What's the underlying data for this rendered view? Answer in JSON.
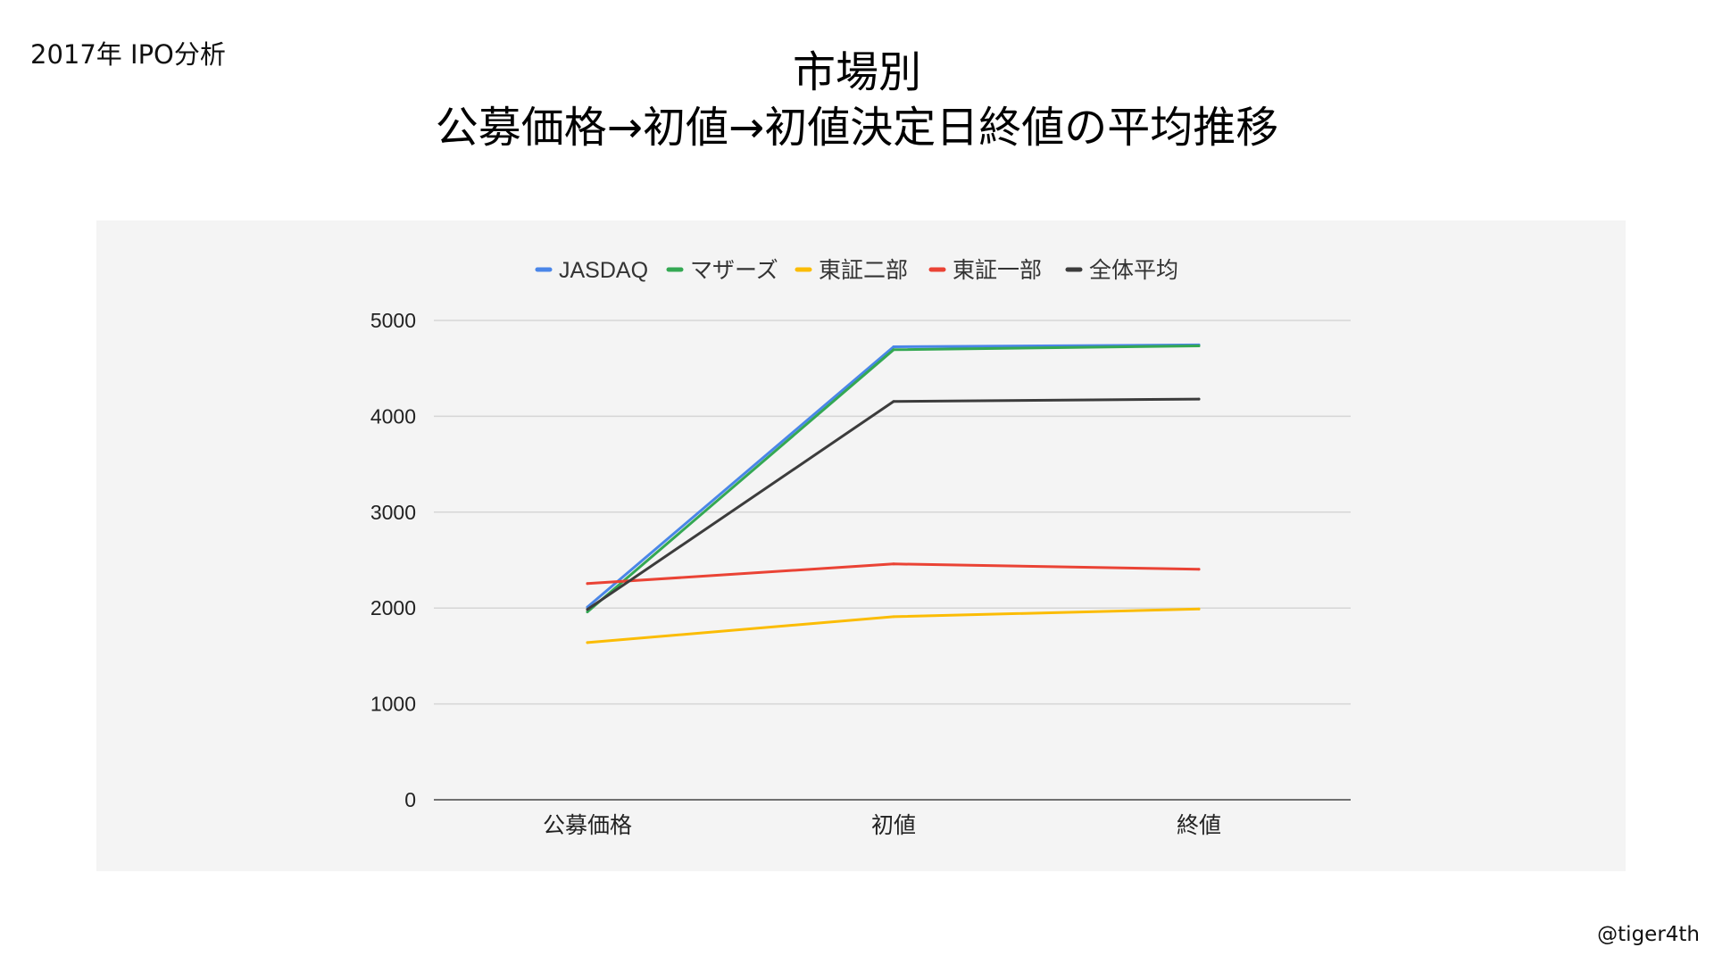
{
  "header": {
    "corner_label": "2017年 IPO分析",
    "title_line1": "市場別",
    "title_line2": "公募価格→初値→初値決定日終値の平均推移"
  },
  "footer": {
    "credit": "@tiger4th"
  },
  "chart_data": {
    "type": "line",
    "categories": [
      "公募価格",
      "初値",
      "終値"
    ],
    "ylim": [
      0,
      5000
    ],
    "yticks": [
      0,
      1000,
      2000,
      3000,
      4000,
      5000
    ],
    "grid": true,
    "legend_position": "top",
    "series": [
      {
        "name": "JASDAQ",
        "color": "#4a86e8",
        "values": [
          2010,
          4725,
          4745
        ]
      },
      {
        "name": "マザーズ",
        "color": "#34a853",
        "values": [
          1960,
          4695,
          4735
        ]
      },
      {
        "name": "東証二部",
        "color": "#fbbc04",
        "values": [
          1640,
          1910,
          1990
        ]
      },
      {
        "name": "東証一部",
        "color": "#ea4335",
        "values": [
          2255,
          2460,
          2405
        ]
      },
      {
        "name": "全体平均",
        "color": "#3c3c3c",
        "values": [
          1985,
          4155,
          4180
        ]
      }
    ]
  }
}
